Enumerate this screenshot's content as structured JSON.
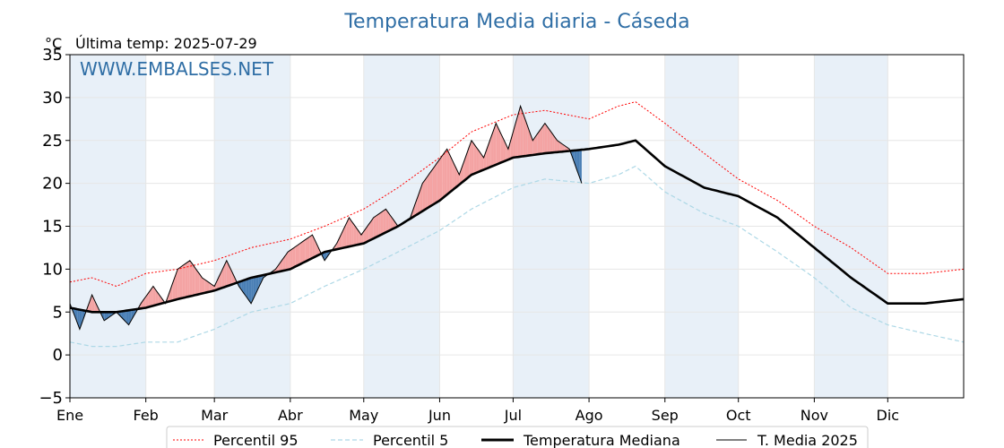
{
  "chart_data": {
    "type": "line",
    "title": "Temperatura Media diaria - Cáseda",
    "unit": "°C",
    "last_temp_label": "Última temp: 2025-07-29",
    "watermark": "WWW.EMBALSES.NET",
    "ylim": [
      -5,
      35
    ],
    "yticks": [
      "−5",
      "0",
      "5",
      "10",
      "15",
      "20",
      "25",
      "30",
      "35"
    ],
    "ytick_values": [
      -5,
      0,
      5,
      10,
      15,
      20,
      25,
      30,
      35
    ],
    "months": [
      "Ene",
      "Feb",
      "Mar",
      "Abr",
      "May",
      "Jun",
      "Jul",
      "Ago",
      "Sep",
      "Oct",
      "Nov",
      "Dic"
    ],
    "month_start_days": [
      1,
      32,
      60,
      91,
      121,
      152,
      182,
      213,
      244,
      274,
      305,
      335
    ],
    "xlim": [
      1,
      366
    ],
    "grid": true,
    "legend_position": "bottom-center",
    "colors": {
      "p95": "#ff0000",
      "p5": "#add8e6",
      "median": "#000000",
      "current": "#000000",
      "above_fill": "#f4a3a3",
      "below_fill": "#4a7fb5",
      "band": "#e8f0f8",
      "title": "#2f6ea5",
      "watermark": "#2f6ea5"
    },
    "series": [
      {
        "name": "Percentil 95",
        "style": "dotted-red",
        "anchors_day": [
          1,
          10,
          20,
          32,
          45,
          60,
          75,
          91,
          105,
          121,
          135,
          152,
          165,
          182,
          195,
          213,
          225,
          232,
          244,
          260,
          274,
          290,
          305,
          320,
          335,
          350,
          366
        ],
        "anchors_val": [
          8.5,
          9,
          8,
          9.5,
          10,
          11,
          12.5,
          13.5,
          15,
          17,
          19.5,
          23,
          26,
          28,
          28.5,
          27.5,
          29,
          29.5,
          27,
          23.5,
          20.5,
          18,
          15,
          12.5,
          9.5,
          9.5,
          10
        ]
      },
      {
        "name": "Percentil 5",
        "style": "dashed-lightblue",
        "anchors_day": [
          1,
          10,
          20,
          32,
          45,
          60,
          75,
          91,
          105,
          121,
          135,
          152,
          165,
          182,
          195,
          213,
          225,
          232,
          244,
          260,
          274,
          290,
          305,
          320,
          335,
          350,
          366
        ],
        "anchors_val": [
          1.5,
          1,
          1,
          1.5,
          1.5,
          3,
          5,
          6,
          8,
          10,
          12,
          14.5,
          17,
          19.5,
          20.5,
          20,
          21,
          22,
          19,
          16.5,
          15,
          12,
          9,
          5.5,
          3.5,
          2.5,
          1.5
        ]
      },
      {
        "name": "Temperatura Mediana",
        "style": "thick-black",
        "anchors_day": [
          1,
          10,
          20,
          32,
          45,
          60,
          75,
          91,
          105,
          121,
          135,
          152,
          165,
          182,
          195,
          213,
          225,
          232,
          244,
          260,
          274,
          290,
          305,
          320,
          335,
          350,
          366
        ],
        "anchors_val": [
          5.5,
          5,
          5,
          5.5,
          6.5,
          7.5,
          9,
          10,
          12,
          13,
          15,
          18,
          21,
          23,
          23.5,
          24,
          24.5,
          25,
          22,
          19.5,
          18.5,
          16,
          12.5,
          9,
          6,
          6,
          6.5
        ]
      },
      {
        "name": "T. Media 2025",
        "style": "thin-black",
        "anchors_day": [
          1,
          5,
          10,
          15,
          20,
          25,
          30,
          35,
          40,
          45,
          50,
          55,
          60,
          65,
          70,
          75,
          80,
          85,
          90,
          95,
          100,
          105,
          110,
          115,
          120,
          125,
          130,
          135,
          140,
          145,
          150,
          155,
          160,
          165,
          170,
          175,
          180,
          185,
          190,
          195,
          200,
          205,
          210
        ],
        "anchors_val": [
          6,
          3,
          7,
          4,
          5,
          3.5,
          6,
          8,
          6,
          10,
          11,
          9,
          8,
          11,
          8,
          6,
          9,
          10,
          12,
          13,
          14,
          11,
          13,
          16,
          14,
          16,
          17,
          15,
          16,
          20,
          22,
          24,
          21,
          25,
          23,
          27,
          24,
          29,
          25,
          27,
          25,
          24,
          20
        ]
      }
    ]
  }
}
